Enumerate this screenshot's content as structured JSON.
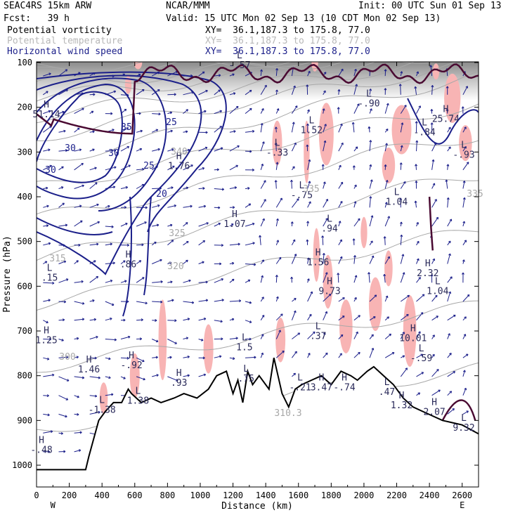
{
  "header": {
    "model": "SEAC4RS 15km ARW",
    "org": "NCAR/MMM",
    "init": "Init: 00 UTC Sun 01 Sep 13",
    "fcst": "Fcst:   39 h",
    "valid": "Valid: 15 UTC Mon 02 Sep 13 (10 CDT Mon 02 Sep 13)",
    "fields": [
      {
        "name": "Potential vorticity",
        "xy": "XY=  36.1,187.3 to 175.8, 77.0"
      },
      {
        "name": "Potential temperature",
        "xy": "XY=  36.1,187.3 to 175.8, 77.0"
      },
      {
        "name": "Horizontal wind speed",
        "xy": "XY=  36.1,187.3 to 175.8, 77.0"
      }
    ]
  },
  "colors": {
    "pv": "#4a0a32",
    "theta": "#a8a8a8",
    "wind": "#1b1f8a",
    "shade": "#f8b4b4",
    "terrain": "#000000"
  },
  "chart_data": {
    "type": "cross-section",
    "xlabel": "Distance (km)",
    "ylabel": "Pressure (hPa)",
    "xlim": [
      0,
      2700
    ],
    "ylim": [
      1050,
      100
    ],
    "x_ticks": [
      "0",
      "200",
      "400",
      "600",
      "800",
      "1000",
      "1200",
      "1400",
      "1600",
      "1800",
      "2000",
      "2200",
      "2400",
      "2600"
    ],
    "y_ticks": [
      "100",
      "200",
      "300",
      "400",
      "500",
      "600",
      "700",
      "800",
      "900",
      "1000"
    ],
    "x_ends": [
      "W",
      "E"
    ],
    "terrain": {
      "x": [
        0,
        300,
        320,
        380,
        420,
        470,
        520,
        560,
        580,
        640,
        700,
        760,
        840,
        900,
        980,
        1050,
        1100,
        1160,
        1200,
        1230,
        1260,
        1290,
        1320,
        1360,
        1420,
        1450,
        1500,
        1540,
        1580,
        1620,
        1680,
        1740,
        1800,
        1860,
        1920,
        1960,
        2020,
        2060,
        2120,
        2180,
        2240,
        2300,
        2360,
        2420,
        2480,
        2540,
        2600,
        2650,
        2700
      ],
      "p": [
        1010,
        1010,
        980,
        900,
        880,
        860,
        860,
        830,
        840,
        860,
        850,
        860,
        850,
        840,
        850,
        830,
        800,
        790,
        840,
        810,
        860,
        790,
        820,
        800,
        830,
        760,
        840,
        870,
        830,
        820,
        810,
        800,
        820,
        790,
        800,
        810,
        790,
        780,
        800,
        820,
        850,
        870,
        880,
        890,
        900,
        905,
        910,
        920,
        930
      ]
    },
    "wind_contours": [
      {
        "label": "35"
      },
      {
        "label": "30"
      },
      {
        "label": "25"
      },
      {
        "label": "20"
      }
    ],
    "theta_contours": [
      "300",
      "315",
      "325",
      "320",
      "335",
      "340",
      "335",
      "310.3"
    ],
    "pv_labels": [
      {
        "kind": "H",
        "value": "51.14",
        "x": 60,
        "p": 215
      },
      {
        "kind": "L",
        "value": "-.57",
        "x": 1240,
        "p": 105
      },
      {
        "kind": "H",
        "value": "1.76",
        "x": 870,
        "p": 330
      },
      {
        "kind": "L",
        "value": "-.33",
        "x": 1470,
        "p": 300
      },
      {
        "kind": "L",
        "value": "1.52",
        "x": 1680,
        "p": 250
      },
      {
        "kind": "L",
        "value": "-.90",
        "x": 2030,
        "p": 190
      },
      {
        "kind": "L",
        "value": "-.84",
        "x": 2370,
        "p": 255
      },
      {
        "kind": "H",
        "value": "25.74",
        "x": 2500,
        "p": 225
      },
      {
        "kind": "L",
        "value": "-.93",
        "x": 2610,
        "p": 305
      },
      {
        "kind": "H",
        "value": "1.07",
        "x": 1210,
        "p": 460
      },
      {
        "kind": "L",
        "value": "-.75",
        "x": 1620,
        "p": 395
      },
      {
        "kind": "L",
        "value": "1.04",
        "x": 2200,
        "p": 410
      },
      {
        "kind": "L",
        "value": ".94",
        "x": 1790,
        "p": 470
      },
      {
        "kind": "H",
        "value": "1.56",
        "x": 1720,
        "p": 545
      },
      {
        "kind": "H",
        "value": "2.32",
        "x": 2390,
        "p": 570
      },
      {
        "kind": "H",
        "value": "9.73",
        "x": 1790,
        "p": 610
      },
      {
        "kind": "L",
        "value": "1.04",
        "x": 2450,
        "p": 610
      },
      {
        "kind": "H",
        "value": ".86",
        "x": 560,
        "p": 550
      },
      {
        "kind": "L",
        "value": ".15",
        "x": 80,
        "p": 580
      },
      {
        "kind": "H",
        "value": "1.25",
        "x": 60,
        "p": 720
      },
      {
        "kind": "L",
        "value": ".37",
        "x": 1720,
        "p": 710
      },
      {
        "kind": "H",
        "value": "10.01",
        "x": 2300,
        "p": 715
      },
      {
        "kind": "L",
        "value": "-.59",
        "x": 2350,
        "p": 760
      },
      {
        "kind": "H",
        "value": "1.46",
        "x": 320,
        "p": 785
      },
      {
        "kind": "H",
        "value": "-.92",
        "x": 580,
        "p": 775
      },
      {
        "kind": "L",
        "value": "1.5",
        "x": 1270,
        "p": 735
      },
      {
        "kind": "H",
        "value": ".93",
        "x": 870,
        "p": 815
      },
      {
        "kind": "L",
        "value": "1.38",
        "x": 620,
        "p": 855
      },
      {
        "kind": "L",
        "value": "-.21",
        "x": 1610,
        "p": 825
      },
      {
        "kind": "H",
        "value": "3.47",
        "x": 1740,
        "p": 825
      },
      {
        "kind": "H",
        "value": "-.74",
        "x": 1880,
        "p": 825
      },
      {
        "kind": "L",
        "value": ".47",
        "x": 2140,
        "p": 835
      },
      {
        "kind": "H",
        "value": "1.32",
        "x": 2230,
        "p": 865
      },
      {
        "kind": "H",
        "value": "2.07",
        "x": 2430,
        "p": 880
      },
      {
        "kind": "L",
        "value": "-1.38",
        "x": 400,
        "p": 875
      },
      {
        "kind": "L",
        "value": "9.32",
        "x": 2610,
        "p": 915
      },
      {
        "kind": "L",
        "value": ".75",
        "x": 1280,
        "p": 805
      },
      {
        "kind": "H",
        "value": "-.48",
        "x": 30,
        "p": 965
      }
    ]
  }
}
